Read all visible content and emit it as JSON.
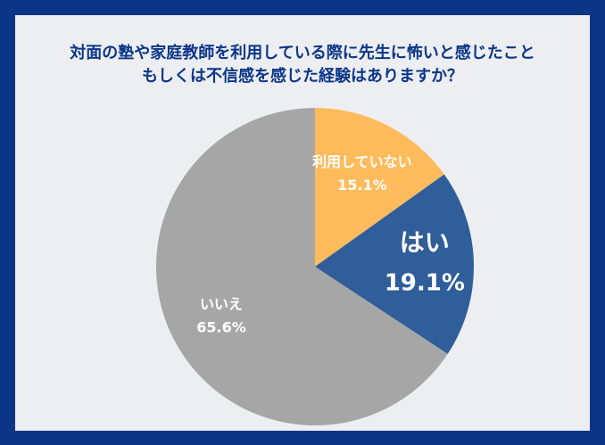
{
  "title_lines": [
    "対面の塾や家庭教師を利用している際に先生に怖いと感じたこと",
    "もしくは不信感を感じた経験はありますか？"
  ],
  "colors": {
    "background": "#0b3688",
    "panel": "#edeef1",
    "title": "#0b3688"
  },
  "chart_data": {
    "type": "pie",
    "title": "対面の塾や家庭教師を利用している際に先生に怖いと感じたこと もしくは不信感を感じた経験はありますか？",
    "start": "12 o'clock",
    "direction": "clockwise",
    "slices": [
      {
        "label": "利用していない",
        "value": 15.1,
        "value_text": "15.1%",
        "color": "#ffbb5c",
        "emphasis": false
      },
      {
        "label": "はい",
        "value": 19.1,
        "value_text": "19.1%",
        "color": "#2f5e9a",
        "emphasis": true
      },
      {
        "label": "いいえ",
        "value": 65.6,
        "value_text": "65.6%",
        "color": "#a6a6a6",
        "emphasis": false
      }
    ]
  }
}
